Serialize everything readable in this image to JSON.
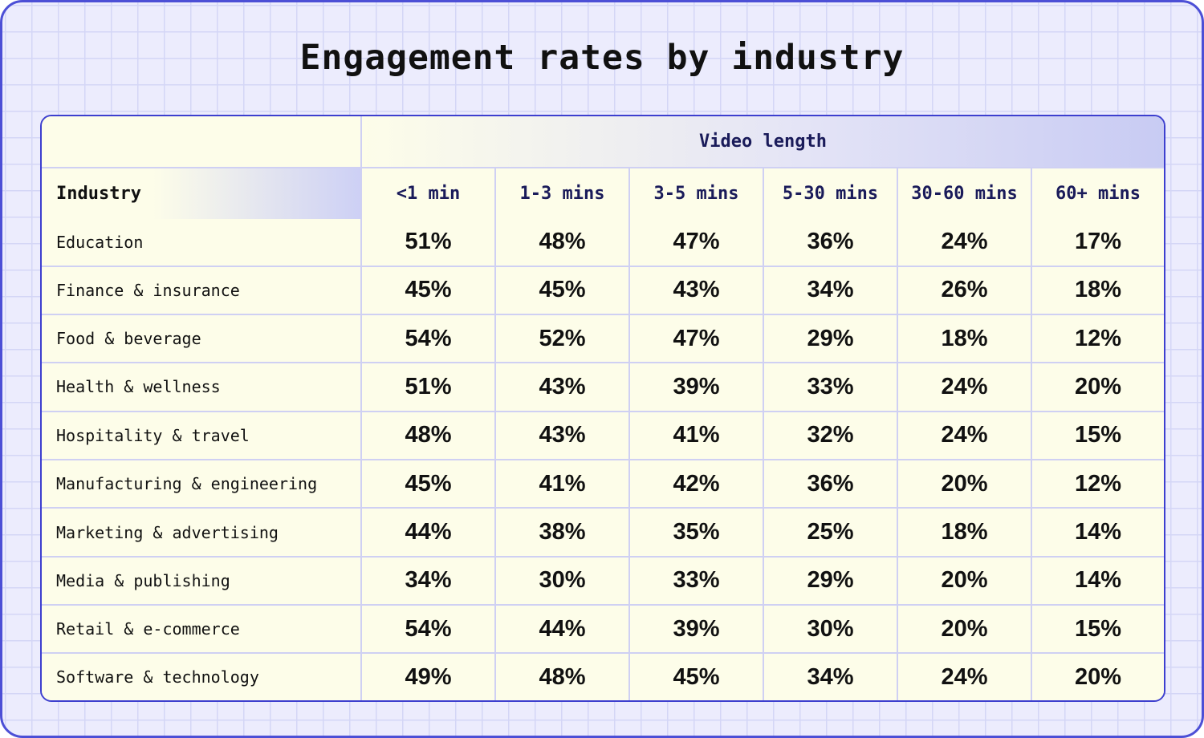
{
  "title": "Engagement rates by industry",
  "colors": {
    "accent": "#3d3fcf",
    "grid": "#d4d6f6",
    "cell_bg": "#fdfde9",
    "page_bg": "#ececfd"
  },
  "chart_data": {
    "type": "table",
    "title": "Engagement rates by industry",
    "row_header": "Industry",
    "column_group": "Video length",
    "columns": [
      "<1 min",
      "1-3 mins",
      "3-5 mins",
      "5-30 mins",
      "30-60 mins",
      "60+ mins"
    ],
    "rows": [
      {
        "label": "Education",
        "values": [
          "51%",
          "48%",
          "47%",
          "36%",
          "24%",
          "17%"
        ]
      },
      {
        "label": "Finance & insurance",
        "values": [
          "45%",
          "45%",
          "43%",
          "34%",
          "26%",
          "18%"
        ]
      },
      {
        "label": "Food & beverage",
        "values": [
          "54%",
          "52%",
          "47%",
          "29%",
          "18%",
          "12%"
        ]
      },
      {
        "label": "Health & wellness",
        "values": [
          "51%",
          "43%",
          "39%",
          "33%",
          "24%",
          "20%"
        ]
      },
      {
        "label": "Hospitality & travel",
        "values": [
          "48%",
          "43%",
          "41%",
          "32%",
          "24%",
          "15%"
        ]
      },
      {
        "label": "Manufacturing & engineering",
        "values": [
          "45%",
          "41%",
          "42%",
          "36%",
          "20%",
          "12%"
        ]
      },
      {
        "label": "Marketing & advertising",
        "values": [
          "44%",
          "38%",
          "35%",
          "25%",
          "18%",
          "14%"
        ]
      },
      {
        "label": "Media & publishing",
        "values": [
          "34%",
          "30%",
          "33%",
          "29%",
          "20%",
          "14%"
        ]
      },
      {
        "label": "Retail & e-commerce",
        "values": [
          "54%",
          "44%",
          "39%",
          "30%",
          "20%",
          "15%"
        ]
      },
      {
        "label": "Software & technology",
        "values": [
          "49%",
          "48%",
          "45%",
          "34%",
          "24%",
          "20%"
        ]
      }
    ]
  }
}
